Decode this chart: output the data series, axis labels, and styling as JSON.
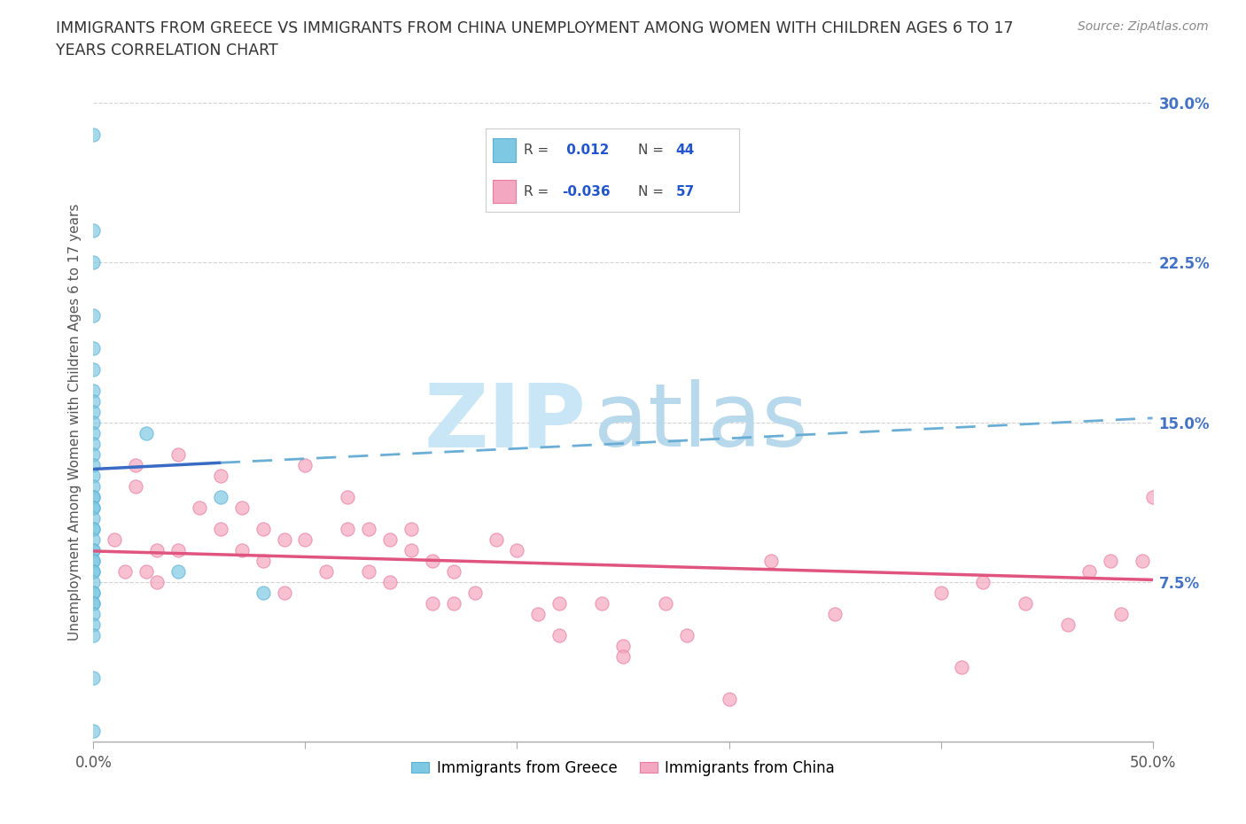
{
  "title_line1": "IMMIGRANTS FROM GREECE VS IMMIGRANTS FROM CHINA UNEMPLOYMENT AMONG WOMEN WITH CHILDREN AGES 6 TO 17",
  "title_line2": "YEARS CORRELATION CHART",
  "source_text": "Source: ZipAtlas.com",
  "ylabel": "Unemployment Among Women with Children Ages 6 to 17 years",
  "x_min": 0.0,
  "x_max": 0.5,
  "y_min": 0.0,
  "y_max": 0.3,
  "y_ticks": [
    0.075,
    0.15,
    0.225,
    0.3
  ],
  "y_tick_labels": [
    "7.5%",
    "15.0%",
    "22.5%",
    "30.0%"
  ],
  "x_ticks": [
    0.0,
    0.1,
    0.2,
    0.3,
    0.4,
    0.5
  ],
  "greece_color": "#7ec8e3",
  "greece_edge_color": "#5aafd4",
  "china_color": "#f4a7c0",
  "china_edge_color": "#e87aa0",
  "blue_line_color": "#3a6bc4",
  "blue_dash_color": "#6aaed6",
  "pink_line_color": "#e05580",
  "watermark_zip_color": "#c8e6f5",
  "watermark_atlas_color": "#b8d8ec",
  "legend_label_greece": "Immigrants from Greece",
  "legend_label_china": "Immigrants from China",
  "greece_R": 0.012,
  "greece_N": 44,
  "china_R": -0.036,
  "china_N": 57,
  "greece_x": [
    0.0,
    0.0,
    0.0,
    0.0,
    0.0,
    0.0,
    0.0,
    0.0,
    0.0,
    0.0,
    0.0,
    0.0,
    0.0,
    0.0,
    0.0,
    0.0,
    0.0,
    0.0,
    0.0,
    0.0,
    0.0,
    0.0,
    0.0,
    0.0,
    0.0,
    0.0,
    0.0,
    0.0,
    0.0,
    0.0,
    0.0,
    0.0,
    0.0,
    0.0,
    0.0,
    0.0,
    0.0,
    0.0,
    0.0,
    0.0,
    0.025,
    0.04,
    0.06,
    0.08
  ],
  "greece_y": [
    0.285,
    0.24,
    0.225,
    0.2,
    0.185,
    0.175,
    0.165,
    0.16,
    0.155,
    0.15,
    0.145,
    0.14,
    0.135,
    0.13,
    0.125,
    0.12,
    0.115,
    0.115,
    0.11,
    0.11,
    0.105,
    0.1,
    0.1,
    0.095,
    0.09,
    0.09,
    0.085,
    0.085,
    0.08,
    0.08,
    0.075,
    0.07,
    0.07,
    0.065,
    0.065,
    0.06,
    0.055,
    0.05,
    0.03,
    0.005,
    0.145,
    0.08,
    0.115,
    0.07
  ],
  "china_x": [
    0.01,
    0.015,
    0.02,
    0.02,
    0.025,
    0.03,
    0.03,
    0.04,
    0.04,
    0.05,
    0.06,
    0.06,
    0.07,
    0.07,
    0.08,
    0.08,
    0.09,
    0.09,
    0.1,
    0.1,
    0.11,
    0.12,
    0.12,
    0.13,
    0.13,
    0.14,
    0.14,
    0.15,
    0.15,
    0.16,
    0.16,
    0.17,
    0.17,
    0.18,
    0.19,
    0.2,
    0.21,
    0.22,
    0.22,
    0.24,
    0.25,
    0.25,
    0.27,
    0.28,
    0.3,
    0.32,
    0.35,
    0.4,
    0.41,
    0.42,
    0.44,
    0.46,
    0.47,
    0.48,
    0.485,
    0.495,
    0.5
  ],
  "china_y": [
    0.095,
    0.08,
    0.12,
    0.13,
    0.08,
    0.075,
    0.09,
    0.135,
    0.09,
    0.11,
    0.1,
    0.125,
    0.09,
    0.11,
    0.085,
    0.1,
    0.07,
    0.095,
    0.095,
    0.13,
    0.08,
    0.1,
    0.115,
    0.08,
    0.1,
    0.095,
    0.075,
    0.09,
    0.1,
    0.085,
    0.065,
    0.065,
    0.08,
    0.07,
    0.095,
    0.09,
    0.06,
    0.065,
    0.05,
    0.065,
    0.045,
    0.04,
    0.065,
    0.05,
    0.02,
    0.085,
    0.06,
    0.07,
    0.035,
    0.075,
    0.065,
    0.055,
    0.08,
    0.085,
    0.06,
    0.085,
    0.115
  ],
  "greece_trend_x0": 0.0,
  "greece_trend_x_solid_end": 0.06,
  "greece_trend_x1": 0.5,
  "greece_trend_y0": 0.128,
  "greece_trend_y_solid_end": 0.131,
  "greece_trend_y1": 0.152,
  "china_trend_x0": 0.0,
  "china_trend_x1": 0.5,
  "china_trend_y0": 0.0895,
  "china_trend_y1": 0.076,
  "background_color": "#ffffff",
  "grid_color": "#c8c8c8"
}
